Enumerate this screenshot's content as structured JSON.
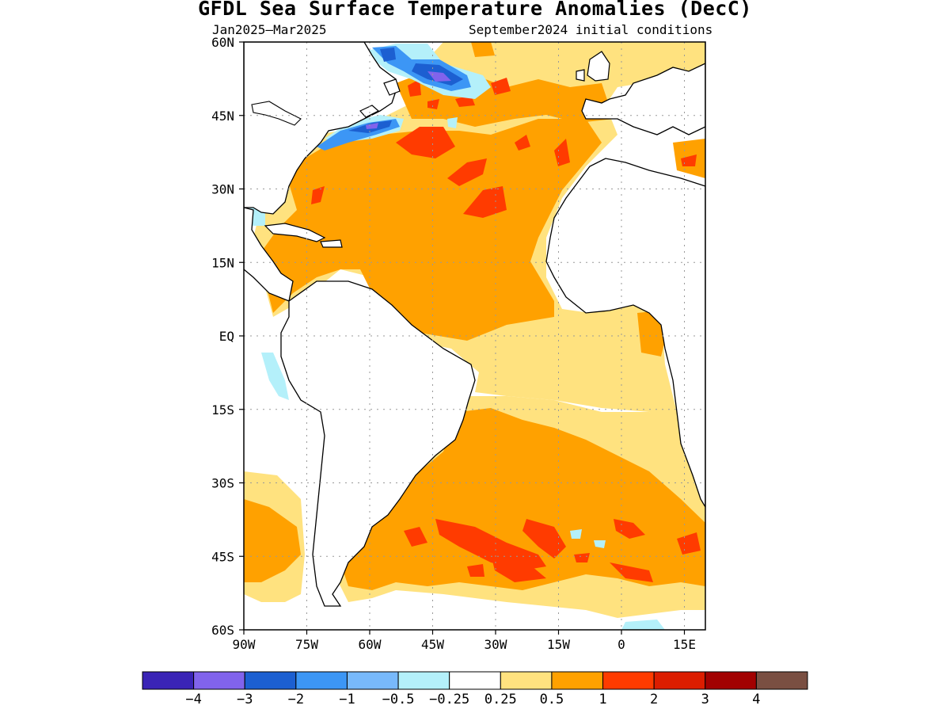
{
  "title": "GFDL Sea Surface Temperature Anomalies (DecC)",
  "subtitle_left": "Jan2025–Mar2025",
  "subtitle_right": "September2024 initial conditions",
  "map": {
    "lon_range": [
      -90,
      20
    ],
    "lat_range": [
      -60,
      60
    ],
    "lat_ticks": [
      {
        "value": 60,
        "label": "60N"
      },
      {
        "value": 45,
        "label": "45N"
      },
      {
        "value": 30,
        "label": "30N"
      },
      {
        "value": 15,
        "label": "15N"
      },
      {
        "value": 0,
        "label": "EQ"
      },
      {
        "value": -15,
        "label": "15S"
      },
      {
        "value": -30,
        "label": "30S"
      },
      {
        "value": -45,
        "label": "45S"
      },
      {
        "value": -60,
        "label": "60S"
      }
    ],
    "lon_ticks": [
      {
        "value": -90,
        "label": "90W"
      },
      {
        "value": -75,
        "label": "75W"
      },
      {
        "value": -60,
        "label": "60W"
      },
      {
        "value": -45,
        "label": "45W"
      },
      {
        "value": -30,
        "label": "30W"
      },
      {
        "value": -15,
        "label": "15W"
      },
      {
        "value": 0,
        "label": "0"
      },
      {
        "value": 15,
        "label": "15E"
      }
    ],
    "grid": "dotted"
  },
  "colorbar": {
    "colors": [
      "#3a24b6",
      "#8163ec",
      "#1c5fd1",
      "#3c96f5",
      "#78b9fb",
      "#b4f0fa",
      "#ffffff",
      "#ffe27f",
      "#ffa100",
      "#ff3b00",
      "#dc1d00",
      "#a20101",
      "#7a4f42"
    ],
    "labels": [
      "−4",
      "−3",
      "−2",
      "−1",
      "−0.5",
      "−0.25",
      "0.25",
      "0.5",
      "1",
      "2",
      "3",
      "4"
    ]
  }
}
